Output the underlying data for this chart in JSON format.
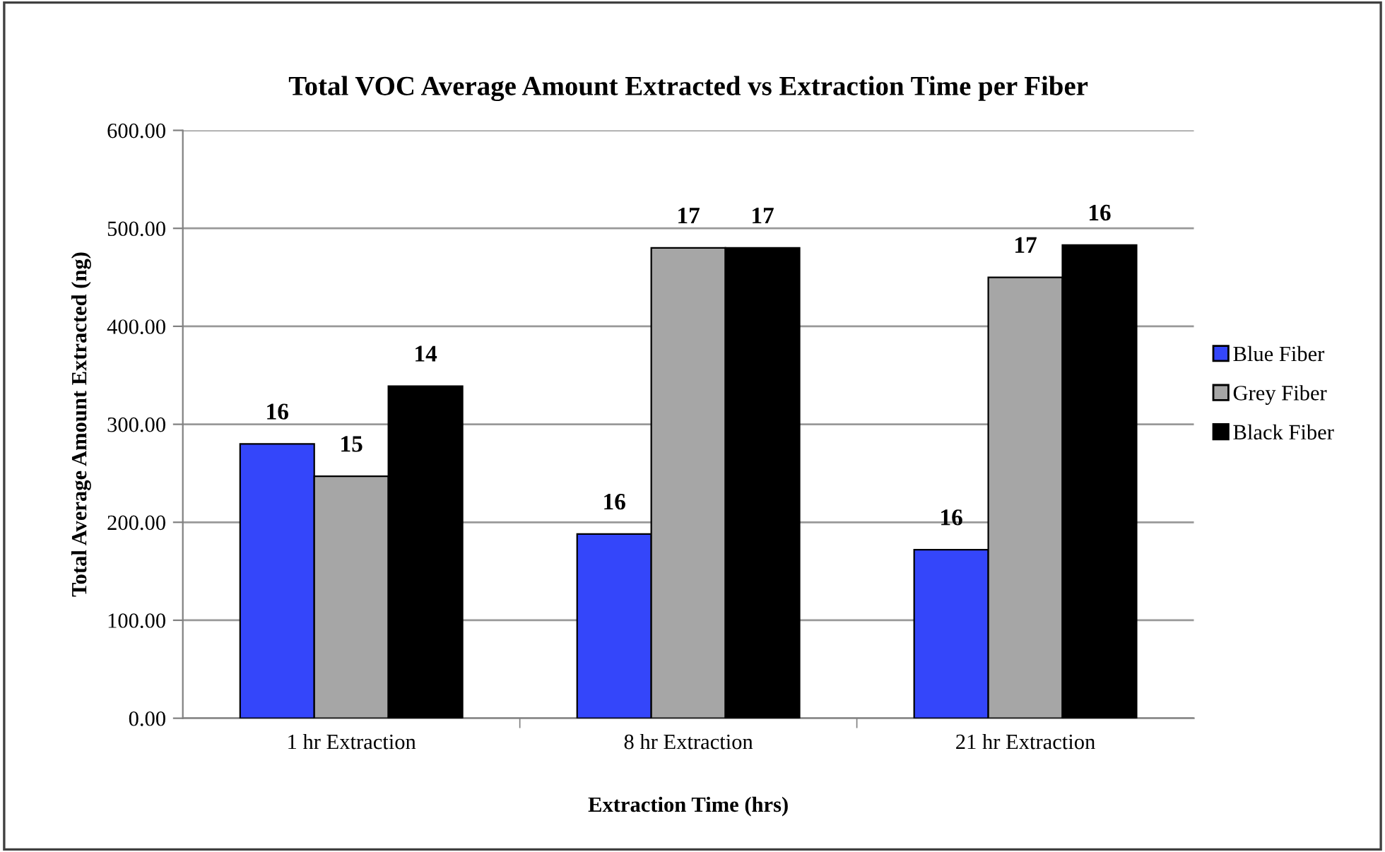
{
  "chart_data": {
    "type": "bar",
    "title": "Total VOC Average Amount Extracted vs Extraction Time per Fiber",
    "xlabel": "Extraction Time (hrs)",
    "ylabel": "Total Average Amount Extracted (ng)",
    "categories": [
      "1 hr Extraction",
      "8 hr Extraction",
      "21 hr Extraction"
    ],
    "series": [
      {
        "name": "Blue Fiber",
        "color": "#3446fa",
        "values": [
          280,
          188,
          172
        ]
      },
      {
        "name": "Grey Fiber",
        "color": "#a6a6a6",
        "values": [
          247,
          480,
          450
        ]
      },
      {
        "name": "Black Fiber",
        "color": "#000000",
        "values": [
          339,
          480,
          483
        ]
      }
    ],
    "annotations": [
      "16",
      "15",
      "14",
      "16",
      "17",
      "17",
      "16",
      "17",
      "16"
    ],
    "ylim": [
      0,
      600
    ],
    "yticks": [
      {
        "value": 0,
        "label": "0.00"
      },
      {
        "value": 100,
        "label": "100.00"
      },
      {
        "value": 200,
        "label": "200.00"
      },
      {
        "value": 300,
        "label": "300.00"
      },
      {
        "value": 400,
        "label": "400.00"
      },
      {
        "value": 500,
        "label": "500.00"
      },
      {
        "value": 600,
        "label": "600.00"
      }
    ],
    "grid": "y",
    "legend": "right"
  }
}
